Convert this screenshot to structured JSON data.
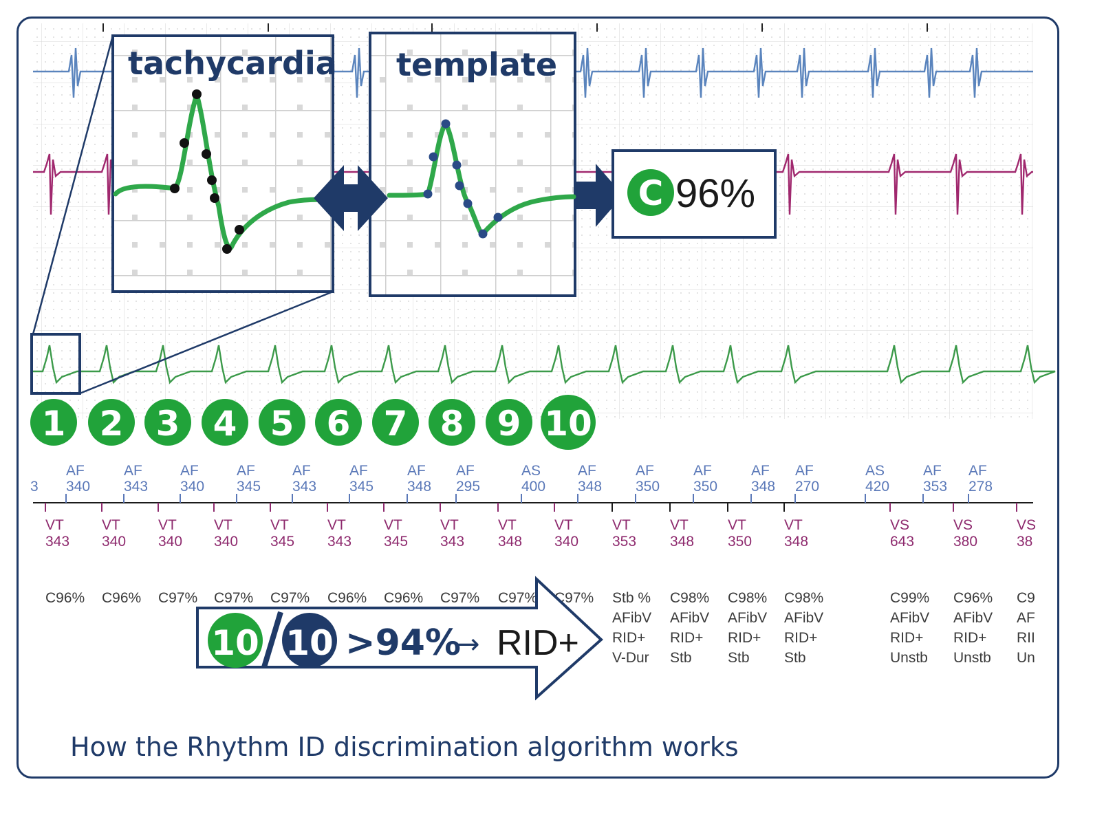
{
  "caption": "How the Rhythm ID discrimination algorithm works",
  "panels": {
    "left_title": "tachycardia",
    "right_title": "template"
  },
  "result": {
    "badge_letter": "C",
    "value": "96%"
  },
  "beat_badges": [
    "1",
    "2",
    "3",
    "4",
    "5",
    "6",
    "7",
    "8",
    "9",
    "10"
  ],
  "summary": {
    "count_green": "10",
    "count_blue": "10",
    "threshold": ">94%",
    "arrow": "→",
    "verdict": "RID+"
  },
  "atrial_markers": [
    {
      "label": "AF",
      "value": "340"
    },
    {
      "label": "AF",
      "value": "343"
    },
    {
      "label": "AF",
      "value": "340"
    },
    {
      "label": "AF",
      "value": "345"
    },
    {
      "label": "AF",
      "value": "343"
    },
    {
      "label": "AF",
      "value": "345"
    },
    {
      "label": "AF",
      "value": "348"
    },
    {
      "label": "AF",
      "value": "295"
    },
    {
      "label": "AS",
      "value": "400"
    },
    {
      "label": "AF",
      "value": "348"
    },
    {
      "label": "AF",
      "value": "350"
    },
    {
      "label": "AF",
      "value": "350"
    },
    {
      "label": "AF",
      "value": "348"
    },
    {
      "label": "AF",
      "value": "270"
    },
    {
      "label": "AS",
      "value": "420"
    },
    {
      "label": "AF",
      "value": "353"
    },
    {
      "label": "AF",
      "value": "278"
    }
  ],
  "ventricular_markers": [
    {
      "label": "VT",
      "value": "343"
    },
    {
      "label": "VT",
      "value": "340"
    },
    {
      "label": "VT",
      "value": "340"
    },
    {
      "label": "VT",
      "value": "340"
    },
    {
      "label": "VT",
      "value": "345"
    },
    {
      "label": "VT",
      "value": "343"
    },
    {
      "label": "VT",
      "value": "345"
    },
    {
      "label": "VT",
      "value": "343"
    },
    {
      "label": "VT",
      "value": "348"
    },
    {
      "label": "VT",
      "value": "340"
    },
    {
      "label": "VT",
      "value": "353"
    },
    {
      "label": "VT",
      "value": "348"
    },
    {
      "label": "VT",
      "value": "350"
    },
    {
      "label": "VT",
      "value": "348"
    },
    {
      "label": "VS",
      "value": "643"
    },
    {
      "label": "VS",
      "value": "380"
    },
    {
      "label": "VS",
      "value": "38"
    }
  ],
  "correlations": [
    "C96%",
    "C96%",
    "C97%",
    "C97%",
    "C97%",
    "C96%",
    "C96%",
    "C97%",
    "C97%",
    "C97%"
  ],
  "status_columns": [
    {
      "lines": [
        "Stb %",
        "AFibV",
        "RID+",
        "V-Dur"
      ]
    },
    {
      "lines": [
        "C98%",
        "AFibV",
        "RID+",
        "Stb"
      ]
    },
    {
      "lines": [
        "C98%",
        "AFibV",
        "RID+",
        "Stb"
      ]
    },
    {
      "lines": [
        "C98%",
        "AFibV",
        "RID+",
        "Stb"
      ]
    },
    {
      "lines": [
        "C99%",
        "AFibV",
        "RID+",
        "Unstb"
      ]
    },
    {
      "lines": [
        "C96%",
        "AFibV",
        "RID+",
        "Unstb"
      ]
    },
    {
      "lines": [
        "C9",
        "AF",
        "RII",
        "Un"
      ]
    }
  ],
  "colors": {
    "navy": "#1f3a68",
    "green": "#21a33a",
    "ecg_green": "#3c9a4a",
    "ecg_blue": "#5a84bd",
    "ecg_magenta": "#a0286e",
    "grid": "#c9c9c9"
  }
}
